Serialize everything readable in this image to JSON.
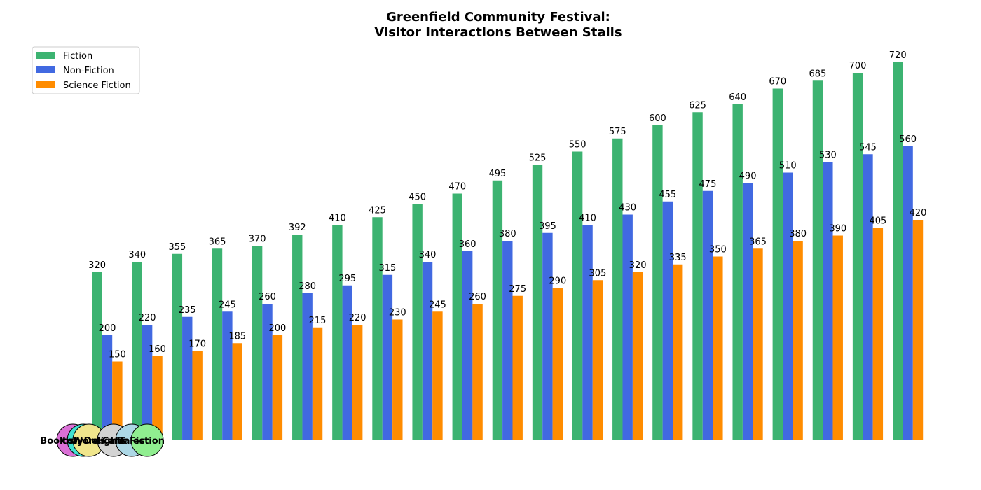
{
  "chart_data": {
    "type": "bar",
    "title_lines": [
      "Greenfield Community Festival:",
      "Visitor Interactions Between Stalls"
    ],
    "xlabel": "",
    "ylabel": "",
    "ylim": [
      0,
      760
    ],
    "grid": false,
    "legend_position": "top-left",
    "series": [
      {
        "name": "Fiction",
        "color": "#3cb371",
        "values": [
          320,
          340,
          355,
          365,
          370,
          392,
          410,
          425,
          450,
          470,
          495,
          525,
          550,
          575,
          600,
          625,
          640,
          670,
          685,
          700,
          720
        ]
      },
      {
        "name": "Non-Fiction",
        "color": "#4169e1",
        "values": [
          200,
          220,
          235,
          245,
          260,
          280,
          295,
          315,
          340,
          360,
          380,
          395,
          410,
          430,
          455,
          475,
          490,
          510,
          530,
          545,
          560
        ]
      },
      {
        "name": "Science Fiction",
        "color": "#ff8c00",
        "values": [
          150,
          160,
          170,
          185,
          200,
          215,
          220,
          230,
          245,
          260,
          275,
          290,
          305,
          320,
          335,
          350,
          365,
          380,
          390,
          405,
          420
        ]
      }
    ],
    "overlay_nodes": [
      {
        "label": "tory",
        "color": "#da70d6"
      },
      {
        "label": "Bookish Delights",
        "color": "#40e0d0"
      },
      {
        "label": "Words",
        "color": "#f0e68c"
      },
      {
        "label": "Cafe",
        "color": "#d3d3d3"
      },
      {
        "label": "Tales",
        "color": "#add8e6"
      },
      {
        "label": "Fiction",
        "color": "#90ee90"
      }
    ]
  }
}
